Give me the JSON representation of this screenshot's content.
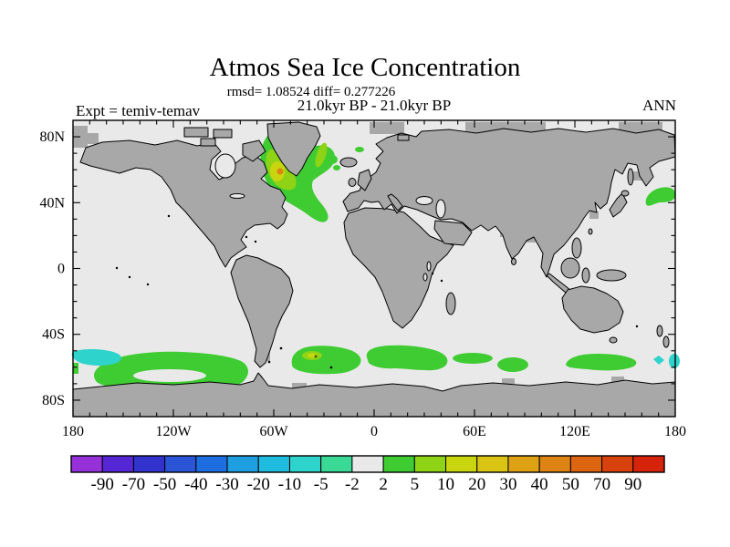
{
  "header": {
    "title": "Atmos Sea Ice Concentration",
    "stats_line": "rmsd= 1.08524 diff= 0.277226",
    "period_line": "21.0kyr BP - 21.0kyr BP",
    "experiment_label": "Expt = temiv-temav",
    "season_label": "ANN"
  },
  "axes": {
    "latitude_ticks": [
      "80N",
      "40N",
      "0",
      "40S",
      "80S"
    ],
    "longitude_ticks": [
      "180",
      "120W",
      "60W",
      "0",
      "60E",
      "120E",
      "180"
    ]
  },
  "colorbar": {
    "boundary_labels": [
      "-90",
      "-70",
      "-50",
      "-40",
      "-30",
      "-20",
      "-10",
      "-5",
      "-2",
      "2",
      "5",
      "10",
      "20",
      "30",
      "40",
      "50",
      "70",
      "90"
    ],
    "segment_colors": [
      "#9630d9",
      "#5526d4",
      "#3233cc",
      "#2b55d6",
      "#1f6ee0",
      "#1f9fe0",
      "#1fbce0",
      "#2ed3cc",
      "#3ad996",
      "#e9e9e9",
      "#3fcc33",
      "#8fd316",
      "#c9d60f",
      "#d9c414",
      "#dda114",
      "#dd8414",
      "#dd6410",
      "#d6410e",
      "#d6230c"
    ]
  },
  "map": {
    "land_color": "#a8a8a8",
    "ocean_color": "#e9e9e9",
    "anomaly_colors": {
      "green": "#3fcc33",
      "yellow_green": "#8fd316",
      "yellow": "#c9d60f",
      "orange": "#dd8414",
      "cyan": "#2ed3cc",
      "dark_speck": "#4d4d00"
    }
  },
  "chart_data": {
    "type": "heatmap",
    "title": "Atmos Sea Ice Concentration",
    "subtitle": "rmsd= 1.08524 diff= 0.277226",
    "comparison": "21.0kyr BP - 21.0kyr BP",
    "experiment": "temiv-temav",
    "season": "ANN",
    "rmsd": 1.08524,
    "diff": 0.277226,
    "projection": "equirectangular world map, land gray, ocean light gray",
    "lon_range": [
      -180,
      180
    ],
    "lat_range": [
      -90,
      90
    ],
    "lat_tick_labels": [
      "80N",
      "40N",
      "0",
      "40S",
      "80S"
    ],
    "lon_tick_labels": [
      "180",
      "120W",
      "60W",
      "0",
      "60E",
      "120E",
      "180"
    ],
    "colorbar_boundaries": [
      -90,
      -70,
      -50,
      -40,
      -30,
      -20,
      -10,
      -5,
      -2,
      2,
      5,
      10,
      20,
      30,
      40,
      50,
      70,
      90
    ],
    "anomaly_regions": [
      {
        "location": "North Atlantic hook from Labrador Sea around S Greenland to Irminger Sea, tail to ~30N 35W",
        "lat": "47N-76N",
        "lon": "62W-20W",
        "value": "2 to 20, core 20-50 with one ~40-50 spot"
      },
      {
        "location": "East Greenland coast / Iceland vicinity small patches",
        "value": "2 to 10"
      },
      {
        "location": "Jan Mayen area small green dot",
        "value": "2 to 5"
      },
      {
        "location": "Sea of Japan small green dot",
        "value": "2 to 5"
      },
      {
        "location": "NW Pacific ~38-50N, 160E-180",
        "value": "2 to 5"
      },
      {
        "location": "Southern Ocean circumpolar band ~48S-62S (looped W of Drake Passage, patches 40W-25W, 0-40E, 45-60E, 115-155E)",
        "value": "2 to 5"
      },
      {
        "location": "South Atlantic ~52S 40W spot inside green band",
        "value": "5 to 30 with dark speck"
      },
      {
        "location": "Southern Pacific ~52S, 180-160W cyan patch",
        "value": "-10 to -2"
      },
      {
        "location": "Southern Ocean ~53S, 170E-178E small cyan patches",
        "value": "-10 to -2"
      }
    ]
  }
}
